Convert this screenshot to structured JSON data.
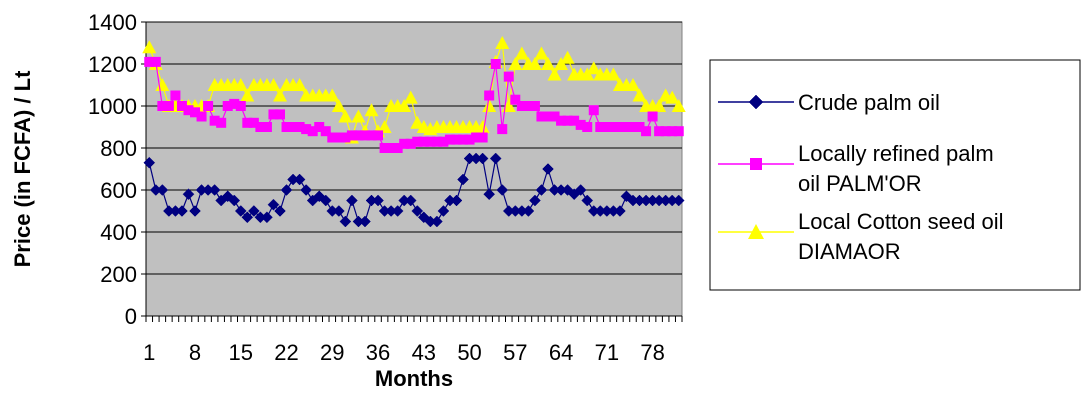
{
  "chart_data": {
    "type": "line",
    "xlabel": "Months",
    "ylabel": "Price (in FCFA) / Lt",
    "ylim": [
      0,
      1400
    ],
    "yticks": [
      0,
      200,
      400,
      600,
      800,
      1000,
      1200,
      1400
    ],
    "xlim": [
      1,
      82
    ],
    "xtick_labels": [
      "1",
      "8",
      "15",
      "22",
      "29",
      "36",
      "43",
      "50",
      "57",
      "64",
      "71",
      "78"
    ],
    "xtick_values": [
      1,
      8,
      15,
      22,
      29,
      36,
      43,
      50,
      57,
      64,
      71,
      78
    ],
    "plot_background": "#c0c0c0",
    "grid": true,
    "legend_position": "right",
    "series": [
      {
        "name": "Crude palm oil",
        "label_lines": [
          "Crude palm oil"
        ],
        "color": "#000080",
        "marker": "diamond",
        "values": [
          730,
          600,
          600,
          500,
          500,
          500,
          580,
          500,
          600,
          600,
          600,
          550,
          570,
          550,
          500,
          470,
          500,
          470,
          470,
          530,
          500,
          600,
          650,
          650,
          600,
          550,
          570,
          550,
          500,
          500,
          450,
          550,
          450,
          450,
          550,
          550,
          500,
          500,
          500,
          550,
          550,
          500,
          470,
          450,
          450,
          500,
          550,
          550,
          650,
          750,
          750,
          750,
          580,
          750,
          600,
          500,
          500,
          500,
          500,
          550,
          600,
          700,
          600,
          600,
          600,
          580,
          600,
          550,
          500,
          500,
          500,
          500,
          500,
          570,
          550,
          550,
          550,
          550,
          550,
          550,
          550,
          550
        ]
      },
      {
        "name": "Locally refined palm oil PALM'OR",
        "label_lines": [
          "Locally refined palm",
          "oil PALM'OR"
        ],
        "color": "#ff00ff",
        "marker": "square",
        "values": [
          1210,
          1210,
          1000,
          1000,
          1050,
          1000,
          980,
          970,
          950,
          1000,
          930,
          920,
          1000,
          1010,
          1000,
          920,
          920,
          900,
          900,
          960,
          960,
          900,
          900,
          900,
          890,
          880,
          900,
          880,
          850,
          850,
          850,
          860,
          860,
          860,
          860,
          860,
          800,
          800,
          800,
          820,
          820,
          830,
          830,
          830,
          830,
          830,
          840,
          840,
          840,
          840,
          850,
          850,
          1050,
          1200,
          890,
          1140,
          1030,
          1000,
          1000,
          1000,
          950,
          950,
          950,
          930,
          930,
          930,
          910,
          900,
          980,
          900,
          900,
          900,
          900,
          900,
          900,
          900,
          880,
          950,
          880,
          880,
          880,
          880
        ]
      },
      {
        "name": "Local Cotton seed oil DIAMAOR",
        "label_lines": [
          "Local Cotton seed oil",
          "DIAMAOR"
        ],
        "color": "#ffff00",
        "marker": "triangle",
        "values": [
          1280,
          1200,
          1100,
          1000,
          1000,
          1000,
          1000,
          1000,
          1000,
          1000,
          1100,
          1100,
          1100,
          1100,
          1100,
          1050,
          1100,
          1100,
          1100,
          1100,
          1050,
          1100,
          1100,
          1100,
          1050,
          1050,
          1050,
          1050,
          1050,
          1000,
          950,
          850,
          950,
          880,
          980,
          880,
          900,
          1000,
          1000,
          1000,
          1040,
          920,
          900,
          890,
          900,
          900,
          900,
          900,
          900,
          900,
          900,
          900,
          1000,
          1210,
          1300,
          1000,
          1200,
          1250,
          1200,
          1200,
          1250,
          1200,
          1150,
          1200,
          1230,
          1150,
          1150,
          1150,
          1180,
          1150,
          1150,
          1150,
          1100,
          1100,
          1100,
          1050,
          1000,
          1000,
          1000,
          1050,
          1040,
          1000
        ]
      }
    ]
  }
}
